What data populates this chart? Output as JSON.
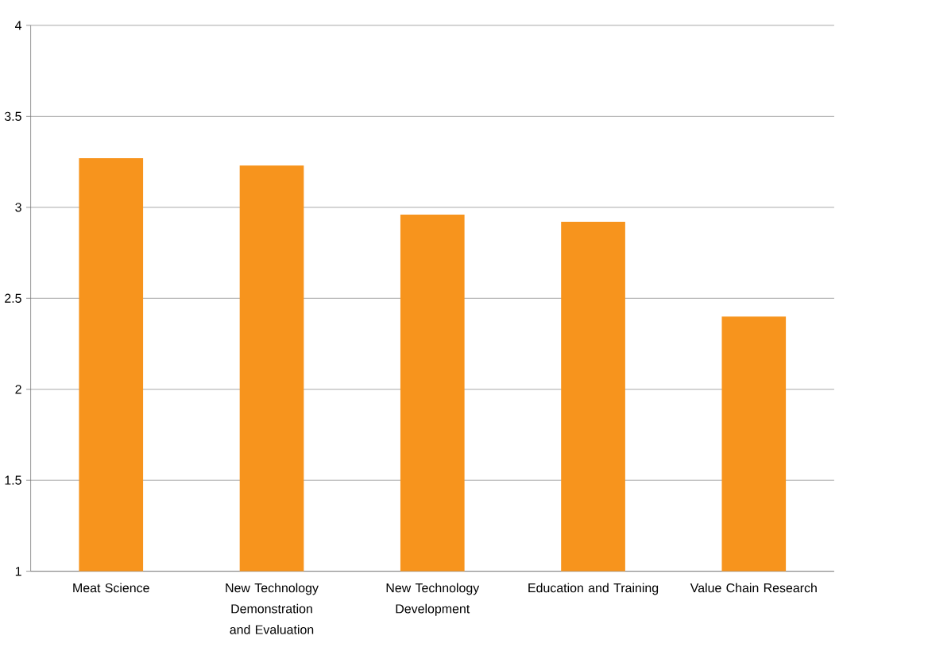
{
  "chart_data": {
    "type": "bar",
    "categories": [
      "Meat Science",
      "New Technology Demonstration and Evaluation",
      "New Technology Development",
      "Education and Training",
      "Value Chain Research"
    ],
    "values": [
      3.27,
      3.23,
      2.96,
      2.92,
      2.4
    ],
    "color": "#f7941d",
    "ylim": [
      1,
      4
    ],
    "yticks": [
      1,
      1.5,
      2,
      2.5,
      3,
      3.5,
      4
    ],
    "grid": "y"
  }
}
